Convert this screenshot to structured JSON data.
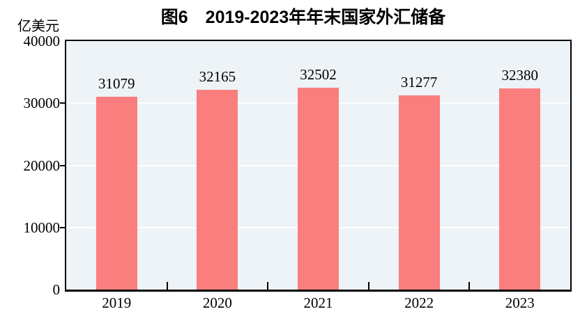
{
  "chart_data": {
    "type": "bar",
    "title": "图6　2019-2023年年末国家外汇储备",
    "unit_label": "亿美元",
    "categories": [
      "2019",
      "2020",
      "2021",
      "2022",
      "2023"
    ],
    "values": [
      31079,
      32165,
      32502,
      31277,
      32380
    ],
    "ylim": [
      0,
      40000
    ],
    "yticks": [
      0,
      10000,
      20000,
      30000,
      40000
    ],
    "grid": "horizontal",
    "gridline_color": "#ffffff",
    "legend": "none",
    "bar_color": "#FA7E7E",
    "plot_bg_color": "#EDF3F6",
    "axis_color": "#000000",
    "text_color": "#000000"
  }
}
